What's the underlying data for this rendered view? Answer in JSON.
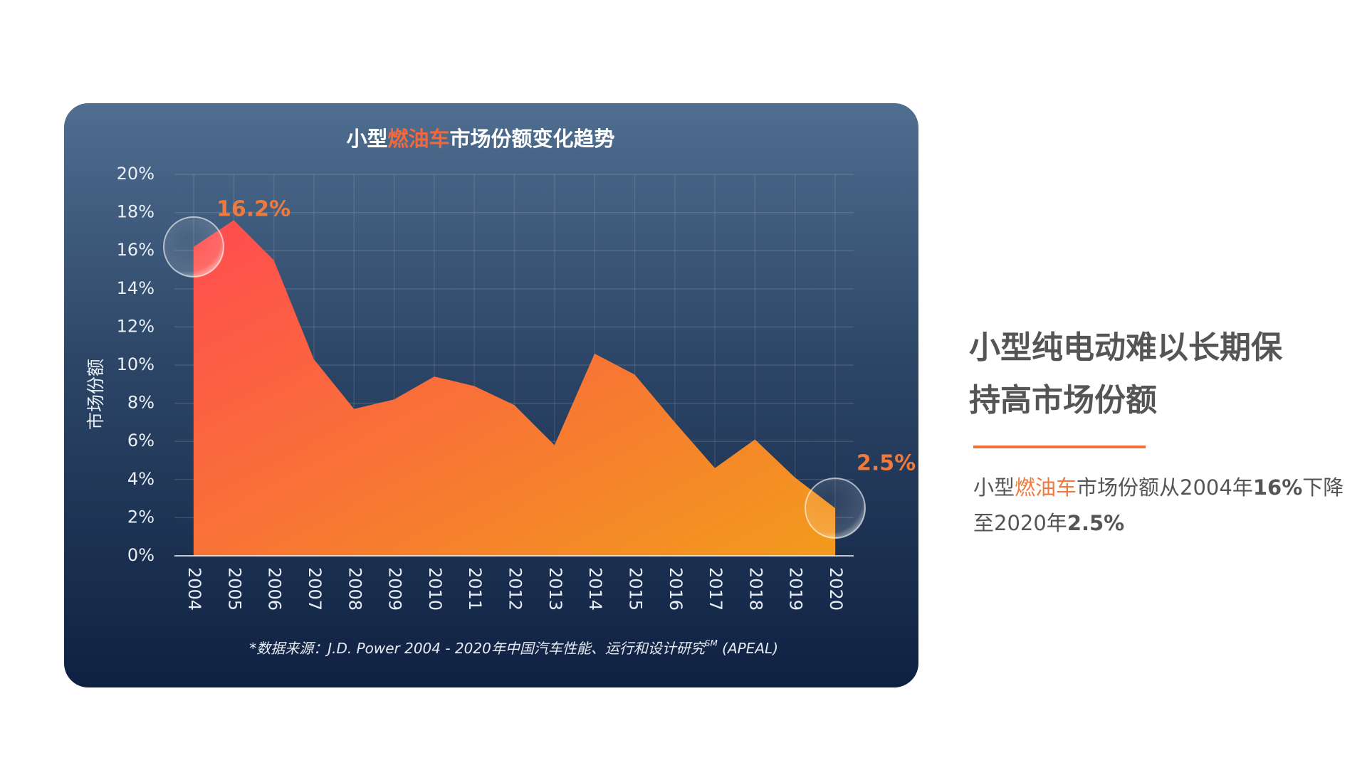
{
  "chart_data": {
    "type": "area",
    "title": {
      "prefix": "小型",
      "highlight": "燃油车",
      "suffix": "市场份额变化趋势"
    },
    "y_label": "市场份额",
    "categories": [
      "2004",
      "2005",
      "2006",
      "2007",
      "2008",
      "2009",
      "2010",
      "2011",
      "2012",
      "2013",
      "2014",
      "2015",
      "2016",
      "2017",
      "2018",
      "2019",
      "2020"
    ],
    "series": [
      {
        "name": "小型燃油车市场份额",
        "colors": [
          "#ff4b50",
          "#f29b1c"
        ],
        "values": [
          16.2,
          17.6,
          15.5,
          10.3,
          7.7,
          8.2,
          9.4,
          8.9,
          7.9,
          5.8,
          10.6,
          9.5,
          7.0,
          4.6,
          6.1,
          4.1,
          2.5
        ],
        "value_labels": [
          "16.2%",
          null,
          null,
          null,
          null,
          null,
          null,
          null,
          null,
          null,
          null,
          null,
          null,
          null,
          null,
          null,
          "2.5%"
        ]
      }
    ],
    "ylim": [
      0,
      20
    ],
    "yticks": [
      {
        "value": 0,
        "label": "0%"
      },
      {
        "value": 2,
        "label": "2%"
      },
      {
        "value": 4,
        "label": "4%"
      },
      {
        "value": 6,
        "label": "6%"
      },
      {
        "value": 8,
        "label": "8%"
      },
      {
        "value": 10,
        "label": "10%"
      },
      {
        "value": 12,
        "label": "12%"
      },
      {
        "value": 14,
        "label": "14%"
      },
      {
        "value": 16,
        "label": "16%"
      },
      {
        "value": 18,
        "label": "18%"
      },
      {
        "value": 20,
        "label": "20%"
      }
    ],
    "grid": true,
    "source": {
      "text": "*数据来源：J.D. Power 2004 - 2020年中国汽车性能、运行和设计研究",
      "sup": "SM",
      "tail": " (APEAL)"
    }
  },
  "side": {
    "heading_lines": [
      "小型纯电动难以长期保",
      "持高市场份额"
    ],
    "body": {
      "p1": "小型",
      "p2": "燃油车",
      "p3": "市场份额从2004年",
      "p4": "16%",
      "p5": "下降至2020年",
      "p6": "2.5%"
    }
  }
}
